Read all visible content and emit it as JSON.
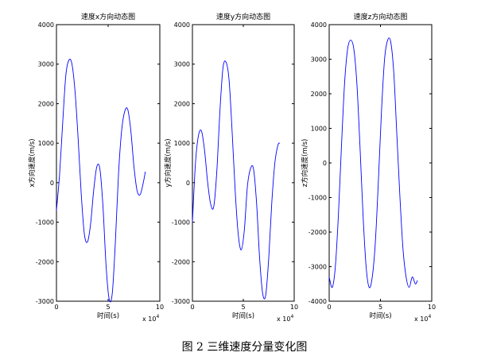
{
  "caption": "图 2  三维速度分量变化图",
  "chart_data": [
    {
      "type": "line",
      "title": "速度x方向动态图",
      "xlabel": "时间(s)",
      "ylabel": "x方向速度(m/s)",
      "x_exponent_label": "x 10",
      "x_exponent_power": "4",
      "xlim": [
        0,
        10
      ],
      "ylim": [
        -3000,
        4000
      ],
      "xticks": [
        "0",
        "5",
        "10"
      ],
      "yticks": [
        "-3000",
        "-2000",
        "-1000",
        "0",
        "1000",
        "2000",
        "3000",
        "4000"
      ],
      "line_color": "#0000ff",
      "series": [
        {
          "x": [
            0,
            0.3,
            0.6,
            0.9,
            1.2,
            1.5,
            1.8,
            2.1,
            2.4,
            2.7,
            3.0,
            3.3,
            3.6,
            3.9,
            4.2,
            4.5,
            4.8,
            5.1,
            5.4,
            5.7,
            6.0,
            6.3,
            6.6,
            6.9,
            7.2,
            7.5,
            7.8,
            8.1,
            8.4,
            8.6
          ],
          "values": [
            -700,
            200,
            1500,
            2700,
            3100,
            3000,
            2300,
            1100,
            -300,
            -1300,
            -1500,
            -1050,
            -200,
            400,
            350,
            -600,
            -2100,
            -2950,
            -2800,
            -1500,
            200,
            1300,
            1800,
            1850,
            1300,
            400,
            -200,
            -300,
            0,
            280
          ]
        }
      ]
    },
    {
      "type": "line",
      "title": "速度y方向动态图",
      "xlabel": "时间(s)",
      "ylabel": "y方向速度(m/s)",
      "x_exponent_label": "x 10",
      "x_exponent_power": "4",
      "xlim": [
        0,
        10
      ],
      "ylim": [
        -3000,
        4000
      ],
      "xticks": [
        "0",
        "5",
        "10"
      ],
      "yticks": [
        "-3000",
        "-2000",
        "-1000",
        "0",
        "1000",
        "2000",
        "3000",
        "4000"
      ],
      "line_color": "#0000ff",
      "series": [
        {
          "x": [
            0,
            0.3,
            0.6,
            0.9,
            1.2,
            1.5,
            1.8,
            2.1,
            2.4,
            2.7,
            3.0,
            3.3,
            3.6,
            3.9,
            4.2,
            4.5,
            4.8,
            5.1,
            5.4,
            5.7,
            6.0,
            6.3,
            6.6,
            6.9,
            7.2,
            7.5,
            7.8,
            8.1,
            8.4,
            8.6
          ],
          "values": [
            -1000,
            500,
            1200,
            1300,
            800,
            0,
            -550,
            -600,
            300,
            1800,
            2900,
            3050,
            2600,
            1300,
            -200,
            -1300,
            -1700,
            -1200,
            -100,
            350,
            350,
            -500,
            -1900,
            -2800,
            -2850,
            -1900,
            -500,
            500,
            950,
            1000
          ]
        }
      ]
    },
    {
      "type": "line",
      "title": "速度z方向动态图",
      "xlabel": "时间(s)",
      "ylabel": "z方向速度(m/s)",
      "x_exponent_label": "x 10",
      "x_exponent_power": "4",
      "xlim": [
        0,
        10
      ],
      "ylim": [
        -4000,
        4000
      ],
      "xticks": [
        "0",
        "5",
        "10"
      ],
      "yticks": [
        "-4000",
        "-3000",
        "-2000",
        "-1000",
        "0",
        "1000",
        "2000",
        "3000",
        "4000"
      ],
      "line_color": "#0000ff",
      "series": [
        {
          "x": [
            0,
            0.3,
            0.6,
            0.9,
            1.2,
            1.5,
            1.8,
            2.1,
            2.4,
            2.7,
            3.0,
            3.3,
            3.6,
            3.9,
            4.2,
            4.5,
            4.8,
            5.1,
            5.4,
            5.7,
            6.0,
            6.3,
            6.6,
            6.9,
            7.2,
            7.5,
            7.8,
            8.1,
            8.4,
            8.6
          ],
          "values": [
            -3300,
            -3600,
            -3000,
            -1500,
            500,
            2300,
            3300,
            3550,
            3300,
            2300,
            500,
            -1500,
            -3000,
            -3600,
            -3300,
            -2300,
            -500,
            1500,
            3000,
            3550,
            3500,
            2600,
            800,
            -1000,
            -2500,
            -3300,
            -3600,
            -3300,
            -3500,
            -3400
          ]
        }
      ]
    }
  ]
}
